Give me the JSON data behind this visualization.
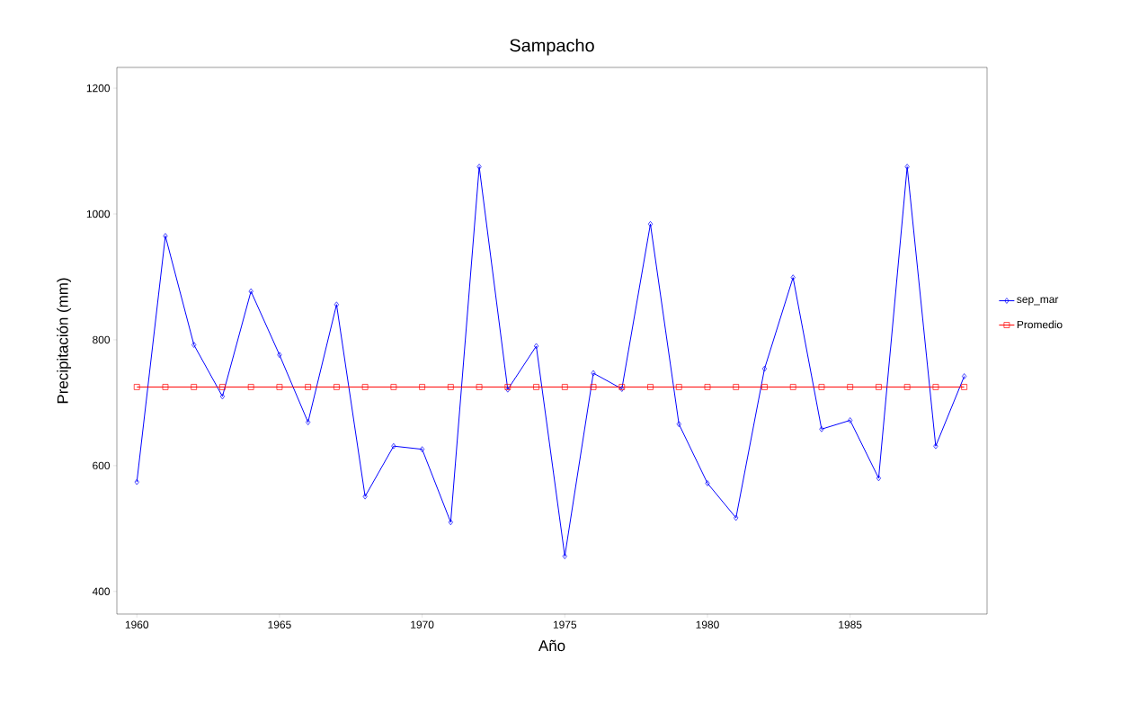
{
  "chart_data": {
    "type": "line",
    "title": "Sampacho",
    "xlabel": "Año",
    "ylabel": "Precipitación (mm)",
    "x": [
      1960,
      1961,
      1962,
      1963,
      1964,
      1965,
      1966,
      1967,
      1968,
      1969,
      1970,
      1971,
      1972,
      1973,
      1974,
      1975,
      1976,
      1977,
      1978,
      1979,
      1980,
      1981,
      1982,
      1983,
      1984,
      1985,
      1986,
      1987,
      1988,
      1989
    ],
    "series": [
      {
        "name": "sep_mar",
        "color": "#0000ff",
        "marker": "diamond",
        "values": [
          574,
          965,
          792,
          710,
          877,
          776,
          669,
          856,
          551,
          631,
          626,
          510,
          1075,
          721,
          790,
          456,
          747,
          722,
          984,
          666,
          572,
          517,
          754,
          899,
          658,
          672,
          580,
          1075,
          631,
          742
        ]
      },
      {
        "name": "Promedio",
        "color": "#ff0000",
        "marker": "square",
        "values": [
          725,
          725,
          725,
          725,
          725,
          725,
          725,
          725,
          725,
          725,
          725,
          725,
          725,
          725,
          725,
          725,
          725,
          725,
          725,
          725,
          725,
          725,
          725,
          725,
          725,
          725,
          725,
          725,
          725,
          725
        ]
      }
    ],
    "xlim": [
      1959.3,
      1989.8
    ],
    "ylim": [
      364,
      1233
    ],
    "xticks": [
      1960,
      1965,
      1970,
      1975,
      1980,
      1985
    ],
    "yticks": [
      400,
      600,
      800,
      1000,
      1200
    ],
    "legend": "right",
    "line_style": "solid"
  }
}
